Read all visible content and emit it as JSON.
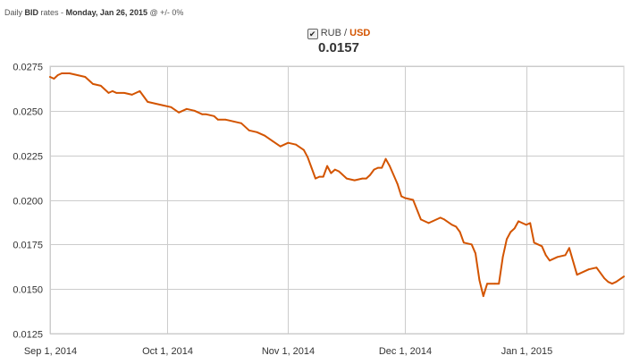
{
  "header": {
    "prefix": "Daily",
    "bid": "BID",
    "middle": "rates -",
    "date": "Monday, Jan 26, 2015",
    "suffix": "@ +/- 0%"
  },
  "legend": {
    "checkbox_icon": "checkmark-icon",
    "base": "RUB",
    "separator": "/",
    "quote": "USD",
    "value": "0.0157"
  },
  "colors": {
    "line": "#d35400",
    "grid": "#cccccc",
    "axis": "#999999"
  },
  "chart_data": {
    "type": "line",
    "title": "",
    "xlabel": "",
    "ylabel": "",
    "xlim": [
      "2014-09-01",
      "2015-01-26"
    ],
    "ylim": [
      0.0125,
      0.0275
    ],
    "yticks": [
      "0.0125",
      "0.0150",
      "0.0175",
      "0.0200",
      "0.0225",
      "0.0250",
      "0.0275"
    ],
    "xticks": [
      {
        "date": "2014-09-01",
        "label": "Sep 1, 2014"
      },
      {
        "date": "2014-10-01",
        "label": "Oct 1, 2014"
      },
      {
        "date": "2014-11-01",
        "label": "Nov 1, 2014"
      },
      {
        "date": "2014-12-01",
        "label": "Dec 1, 2014"
      },
      {
        "date": "2015-01-01",
        "label": "Jan 1, 2015"
      }
    ],
    "grid": true,
    "series": [
      {
        "name": "RUB/USD",
        "x": [
          "2014-09-01",
          "2014-09-02",
          "2014-09-03",
          "2014-09-04",
          "2014-09-05",
          "2014-09-06",
          "2014-09-08",
          "2014-09-10",
          "2014-09-12",
          "2014-09-14",
          "2014-09-16",
          "2014-09-17",
          "2014-09-18",
          "2014-09-20",
          "2014-09-22",
          "2014-09-24",
          "2014-09-26",
          "2014-09-28",
          "2014-09-30",
          "2014-10-02",
          "2014-10-04",
          "2014-10-06",
          "2014-10-08",
          "2014-10-10",
          "2014-10-11",
          "2014-10-13",
          "2014-10-14",
          "2014-10-16",
          "2014-10-18",
          "2014-10-20",
          "2014-10-22",
          "2014-10-24",
          "2014-10-26",
          "2014-10-28",
          "2014-10-30",
          "2014-11-01",
          "2014-11-03",
          "2014-11-05",
          "2014-11-06",
          "2014-11-07",
          "2014-11-08",
          "2014-11-09",
          "2014-11-10",
          "2014-11-11",
          "2014-11-12",
          "2014-11-13",
          "2014-11-14",
          "2014-11-16",
          "2014-11-18",
          "2014-11-20",
          "2014-11-21",
          "2014-11-22",
          "2014-11-23",
          "2014-11-24",
          "2014-11-25",
          "2014-11-26",
          "2014-11-27",
          "2014-11-29",
          "2014-11-30",
          "2014-12-01",
          "2014-12-03",
          "2014-12-05",
          "2014-12-07",
          "2014-12-08",
          "2014-12-10",
          "2014-12-11",
          "2014-12-13",
          "2014-12-14",
          "2014-12-15",
          "2014-12-16",
          "2014-12-18",
          "2014-12-19",
          "2014-12-20",
          "2014-12-21",
          "2014-12-22",
          "2014-12-24",
          "2014-12-25",
          "2014-12-26",
          "2014-12-27",
          "2014-12-28",
          "2014-12-29",
          "2014-12-30",
          "2014-12-31",
          "2015-01-01",
          "2015-01-02",
          "2015-01-03",
          "2015-01-05",
          "2015-01-06",
          "2015-01-07",
          "2015-01-09",
          "2015-01-11",
          "2015-01-12",
          "2015-01-14",
          "2015-01-17",
          "2015-01-19",
          "2015-01-21",
          "2015-01-22",
          "2015-01-23",
          "2015-01-24",
          "2015-01-26"
        ],
        "y": [
          0.0269,
          0.0268,
          0.027,
          0.0271,
          0.0271,
          0.0271,
          0.027,
          0.0269,
          0.0265,
          0.0264,
          0.026,
          0.0261,
          0.026,
          0.026,
          0.0259,
          0.0261,
          0.0255,
          0.0254,
          0.0253,
          0.0252,
          0.0249,
          0.0251,
          0.025,
          0.0248,
          0.0248,
          0.0247,
          0.0245,
          0.0245,
          0.0244,
          0.0243,
          0.0239,
          0.0238,
          0.0236,
          0.0233,
          0.023,
          0.0232,
          0.0231,
          0.0228,
          0.0224,
          0.0218,
          0.0212,
          0.0213,
          0.0213,
          0.0219,
          0.0215,
          0.0217,
          0.0216,
          0.0212,
          0.0211,
          0.0212,
          0.0212,
          0.0214,
          0.0217,
          0.0218,
          0.0218,
          0.0223,
          0.0219,
          0.0209,
          0.0202,
          0.0201,
          0.02,
          0.0189,
          0.0187,
          0.0188,
          0.019,
          0.0189,
          0.0186,
          0.0185,
          0.0182,
          0.0176,
          0.0175,
          0.017,
          0.0155,
          0.0146,
          0.0153,
          0.0153,
          0.0153,
          0.0168,
          0.0178,
          0.0182,
          0.0184,
          0.0188,
          0.0187,
          0.0186,
          0.0187,
          0.0176,
          0.0174,
          0.0169,
          0.0166,
          0.0168,
          0.0169,
          0.0173,
          0.0158,
          0.0161,
          0.0162,
          0.0156,
          0.0154,
          0.0153,
          0.0154,
          0.0157
        ]
      }
    ]
  }
}
